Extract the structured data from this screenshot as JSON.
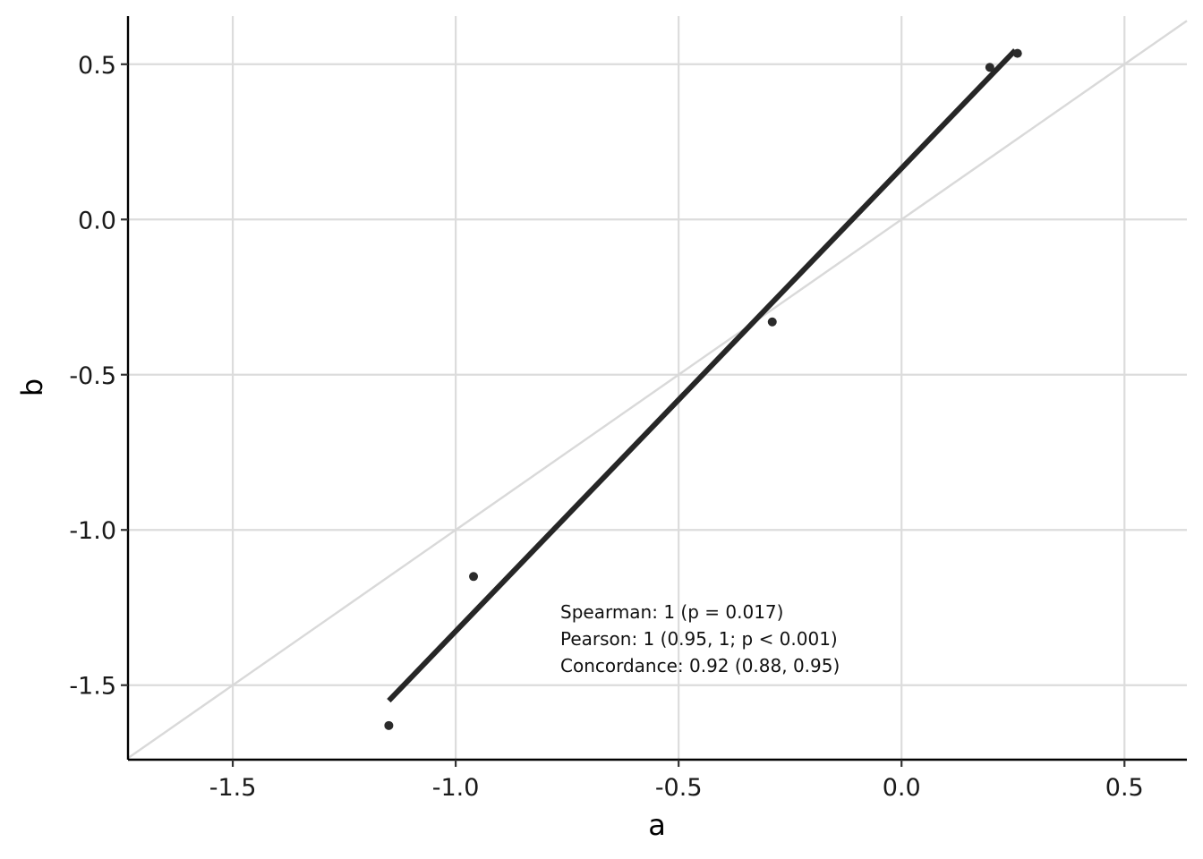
{
  "chart_data": {
    "type": "scatter",
    "xlabel": "a",
    "ylabel": "b",
    "xlim": [
      -1.735,
      0.64
    ],
    "ylim": [
      -1.74,
      0.655
    ],
    "x_ticks": [
      -1.5,
      -1.0,
      -0.5,
      0.0,
      0.5
    ],
    "y_ticks": [
      -1.5,
      -1.0,
      -0.5,
      0.0,
      0.5
    ],
    "x_tick_labels": [
      "-1.5",
      "-1.0",
      "-0.5",
      "0.0",
      "0.5"
    ],
    "y_tick_labels": [
      "-1.5",
      "-1.0",
      "-0.5",
      "0.0",
      "0.5"
    ],
    "grid": true,
    "points": [
      {
        "x": -1.15,
        "y": -1.63
      },
      {
        "x": -0.96,
        "y": -1.15
      },
      {
        "x": -0.29,
        "y": -0.33
      },
      {
        "x": 0.198,
        "y": 0.49
      },
      {
        "x": 0.26,
        "y": 0.535
      }
    ],
    "regression_line": {
      "x": [
        -1.15,
        0.255
      ],
      "y": [
        -1.55,
        0.545
      ]
    },
    "identity_line": {
      "x": [
        -1.735,
        0.64
      ],
      "y": [
        -1.735,
        0.64
      ]
    },
    "colors": {
      "points": "#2b2b2b",
      "regression": "#262626",
      "identity": "#d9d9d9",
      "grid": "#dcdcdc"
    },
    "annotation": {
      "position": "bottom-center",
      "lines": [
        "Spearman: 1 (p = 0.017)",
        "Pearson: 1 (0.95, 1; p < 0.001)",
        "Concordance: 0.92 (0.88, 0.95)"
      ]
    }
  }
}
